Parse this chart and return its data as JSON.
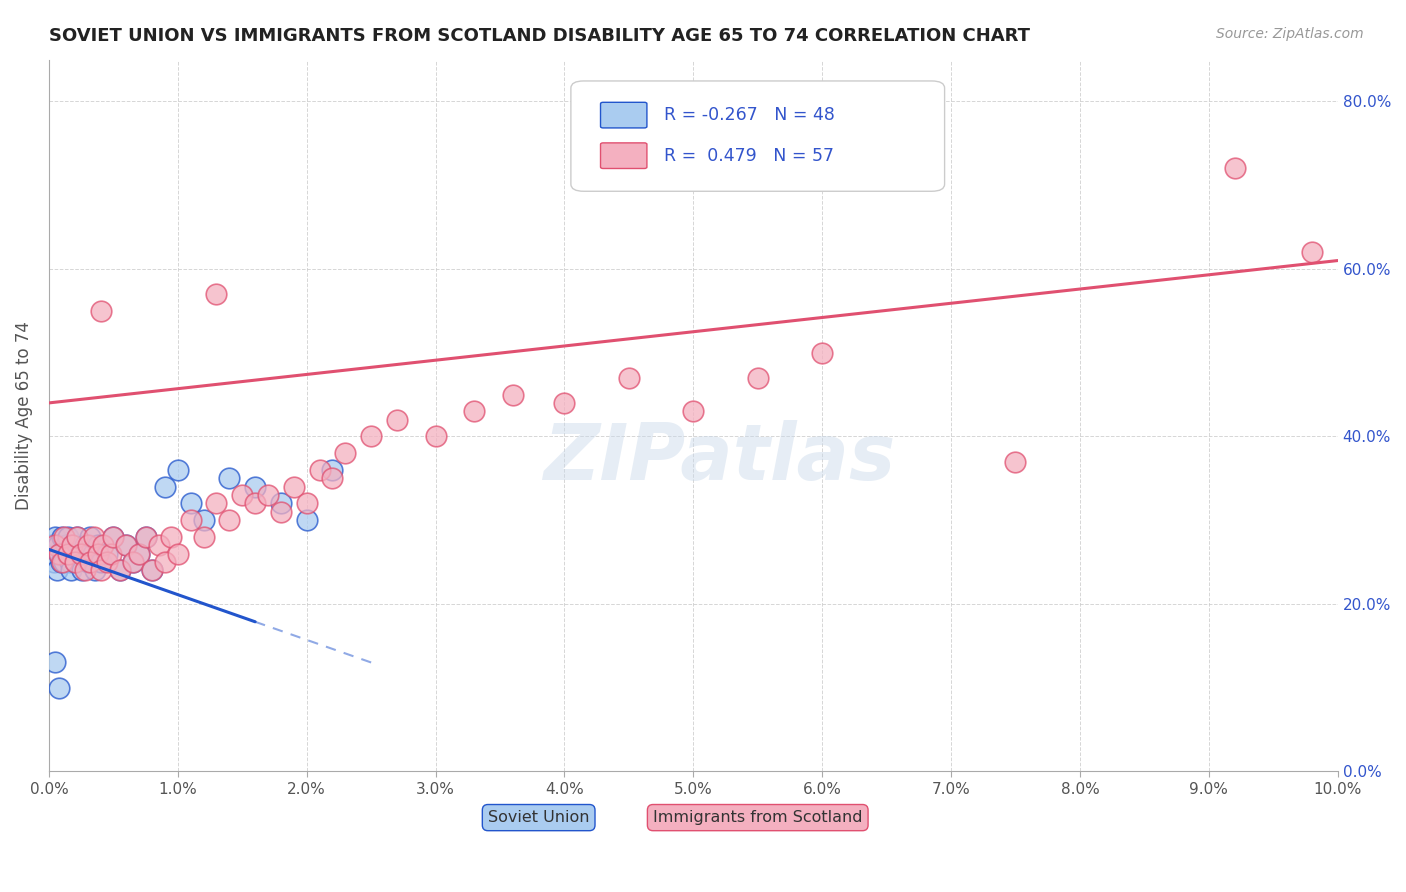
{
  "title": "SOVIET UNION VS IMMIGRANTS FROM SCOTLAND DISABILITY AGE 65 TO 74 CORRELATION CHART",
  "source": "Source: ZipAtlas.com",
  "ylabel": "Disability Age 65 to 74",
  "xlim": [
    0.0,
    10.0
  ],
  "ylim": [
    0.0,
    85.0
  ],
  "xticks": [
    0.0,
    1.0,
    2.0,
    3.0,
    4.0,
    5.0,
    6.0,
    7.0,
    8.0,
    9.0,
    10.0
  ],
  "yticks": [
    0.0,
    20.0,
    40.0,
    60.0,
    80.0
  ],
  "soviet_union_x": [
    0.02,
    0.03,
    0.04,
    0.05,
    0.06,
    0.07,
    0.08,
    0.09,
    0.1,
    0.11,
    0.12,
    0.13,
    0.14,
    0.15,
    0.16,
    0.17,
    0.18,
    0.19,
    0.2,
    0.22,
    0.24,
    0.26,
    0.28,
    0.3,
    0.32,
    0.34,
    0.36,
    0.38,
    0.4,
    0.45,
    0.5,
    0.55,
    0.6,
    0.65,
    0.7,
    0.75,
    0.8,
    0.9,
    1.0,
    1.1,
    1.2,
    1.4,
    1.6,
    1.8,
    2.0,
    2.2,
    0.05,
    0.08
  ],
  "soviet_union_y": [
    27.0,
    26.0,
    25.0,
    28.0,
    24.0,
    27.0,
    26.0,
    25.0,
    28.0,
    26.0,
    25.0,
    27.0,
    26.0,
    28.0,
    25.0,
    24.0,
    27.0,
    26.0,
    25.0,
    28.0,
    26.0,
    24.0,
    27.0,
    25.0,
    28.0,
    26.0,
    24.0,
    27.0,
    25.0,
    26.0,
    28.0,
    24.0,
    27.0,
    25.0,
    26.0,
    28.0,
    24.0,
    34.0,
    36.0,
    32.0,
    30.0,
    35.0,
    34.0,
    32.0,
    30.0,
    36.0,
    13.0,
    10.0
  ],
  "scotland_x": [
    0.05,
    0.08,
    0.1,
    0.12,
    0.15,
    0.18,
    0.2,
    0.22,
    0.25,
    0.28,
    0.3,
    0.32,
    0.35,
    0.38,
    0.4,
    0.42,
    0.45,
    0.48,
    0.5,
    0.55,
    0.6,
    0.65,
    0.7,
    0.75,
    0.8,
    0.85,
    0.9,
    0.95,
    1.0,
    1.1,
    1.2,
    1.3,
    1.4,
    1.5,
    1.6,
    1.7,
    1.8,
    1.9,
    2.0,
    2.1,
    2.2,
    2.3,
    2.5,
    2.7,
    3.0,
    3.3,
    3.6,
    4.0,
    4.5,
    5.0,
    5.5,
    6.0,
    7.5,
    9.2,
    9.8,
    1.3,
    0.4
  ],
  "scotland_y": [
    27.0,
    26.0,
    25.0,
    28.0,
    26.0,
    27.0,
    25.0,
    28.0,
    26.0,
    24.0,
    27.0,
    25.0,
    28.0,
    26.0,
    24.0,
    27.0,
    25.0,
    26.0,
    28.0,
    24.0,
    27.0,
    25.0,
    26.0,
    28.0,
    24.0,
    27.0,
    25.0,
    28.0,
    26.0,
    30.0,
    28.0,
    32.0,
    30.0,
    33.0,
    32.0,
    33.0,
    31.0,
    34.0,
    32.0,
    36.0,
    35.0,
    38.0,
    40.0,
    42.0,
    40.0,
    43.0,
    45.0,
    44.0,
    47.0,
    43.0,
    47.0,
    50.0,
    37.0,
    72.0,
    62.0,
    57.0,
    55.0
  ],
  "soviet_R": -0.267,
  "soviet_N": 48,
  "scotland_R": 0.479,
  "scotland_N": 57,
  "soviet_color": "#aaccf0",
  "scotland_color": "#f4b0c0",
  "soviet_line_color": "#2255cc",
  "scotland_line_color": "#e05070",
  "trend_soviet_x0": 0.0,
  "trend_soviet_y0": 26.5,
  "trend_soviet_x1": 2.5,
  "trend_soviet_y1": 13.0,
  "trend_soviet_solid_end": 1.6,
  "trend_scotland_x0": 0.0,
  "trend_scotland_y0": 44.0,
  "trend_scotland_x1": 10.0,
  "trend_scotland_y1": 61.0,
  "watermark": "ZIPatlas",
  "background_color": "#ffffff",
  "grid_color": "#cccccc",
  "title_color": "#222222",
  "axis_label_color": "#555555",
  "legend_color": "#3355cc"
}
